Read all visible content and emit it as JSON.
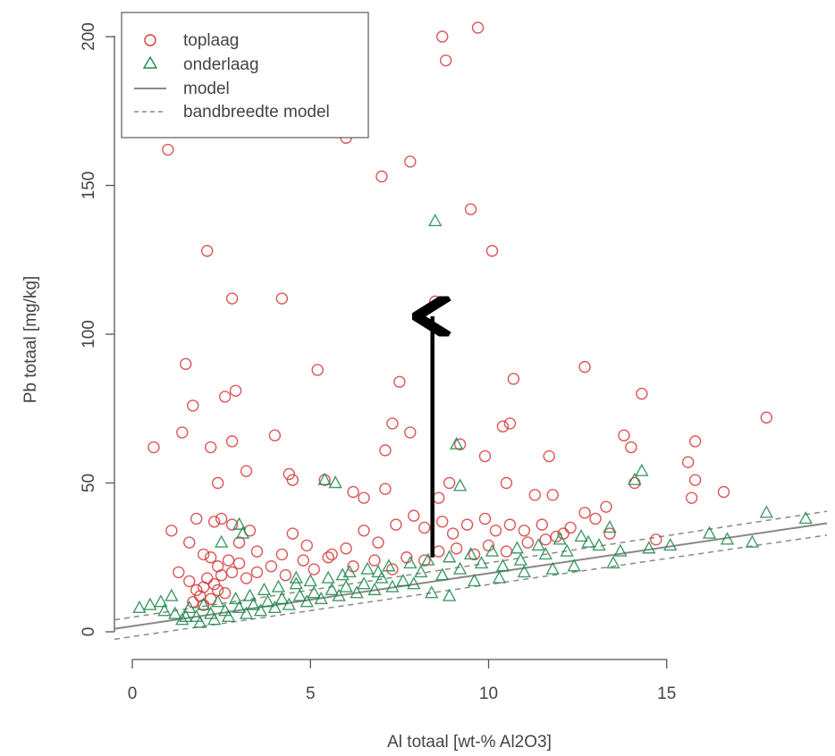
{
  "chart_data": {
    "type": "scatter",
    "xlabel": "Al totaal [wt-% Al2O3]",
    "ylabel": "Pb totaal [mg/kg]",
    "xlim": [
      -0.5,
      19.5
    ],
    "ylim": [
      -5,
      205
    ],
    "x_ticks": [
      0,
      5,
      10,
      15
    ],
    "y_ticks": [
      0,
      50,
      100,
      150,
      200
    ],
    "grid": false,
    "legend_position": "top-left",
    "legend": [
      {
        "label": "toplaag",
        "marker": "circle",
        "color": "#d63a3a"
      },
      {
        "label": "onderlaag",
        "marker": "triangle",
        "color": "#1f8a4c"
      },
      {
        "label": "model",
        "line": "solid",
        "color": "#888888"
      },
      {
        "label": "bandbreedte model",
        "line": "dashed",
        "color": "#888888"
      }
    ],
    "series": [
      {
        "name": "toplaag",
        "marker": "circle",
        "color": "#d63a3a",
        "points": [
          [
            9.7,
            203
          ],
          [
            8.7,
            200
          ],
          [
            8.8,
            192
          ],
          [
            1.0,
            162
          ],
          [
            6.0,
            166
          ],
          [
            7.0,
            153
          ],
          [
            7.8,
            158
          ],
          [
            9.5,
            142
          ],
          [
            10.1,
            128
          ],
          [
            2.1,
            128
          ],
          [
            2.8,
            112
          ],
          [
            4.2,
            112
          ],
          [
            8.5,
            111
          ],
          [
            1.5,
            90
          ],
          [
            5.2,
            88
          ],
          [
            12.7,
            89
          ],
          [
            1.7,
            76
          ],
          [
            2.6,
            79
          ],
          [
            2.9,
            81
          ],
          [
            7.5,
            84
          ],
          [
            10.7,
            85
          ],
          [
            14.3,
            80
          ],
          [
            1.4,
            67
          ],
          [
            4.0,
            66
          ],
          [
            7.3,
            70
          ],
          [
            7.8,
            67
          ],
          [
            10.6,
            70
          ],
          [
            10.4,
            69
          ],
          [
            13.8,
            66
          ],
          [
            14.0,
            62
          ],
          [
            15.8,
            64
          ],
          [
            17.8,
            72
          ],
          [
            0.6,
            62
          ],
          [
            2.2,
            62
          ],
          [
            2.8,
            64
          ],
          [
            7.1,
            61
          ],
          [
            9.2,
            63
          ],
          [
            9.9,
            59
          ],
          [
            11.7,
            59
          ],
          [
            15.6,
            57
          ],
          [
            3.2,
            54
          ],
          [
            4.4,
            53
          ],
          [
            4.5,
            51
          ],
          [
            2.4,
            50
          ],
          [
            5.4,
            51
          ],
          [
            6.2,
            47
          ],
          [
            6.5,
            45
          ],
          [
            7.1,
            48
          ],
          [
            8.6,
            45
          ],
          [
            8.9,
            50
          ],
          [
            10.5,
            50
          ],
          [
            11.3,
            46
          ],
          [
            11.8,
            46
          ],
          [
            13.3,
            42
          ],
          [
            14.1,
            50
          ],
          [
            15.8,
            51
          ],
          [
            16.6,
            47
          ],
          [
            15.7,
            45
          ],
          [
            1.1,
            34
          ],
          [
            1.8,
            38
          ],
          [
            2.3,
            37
          ],
          [
            2.5,
            38
          ],
          [
            2.8,
            36
          ],
          [
            3.3,
            34
          ],
          [
            1.6,
            30
          ],
          [
            2.0,
            26
          ],
          [
            2.2,
            25
          ],
          [
            2.4,
            22
          ],
          [
            2.7,
            24
          ],
          [
            3.0,
            30
          ],
          [
            3.5,
            27
          ],
          [
            4.2,
            26
          ],
          [
            4.5,
            33
          ],
          [
            4.9,
            29
          ],
          [
            5.6,
            26
          ],
          [
            6.0,
            28
          ],
          [
            6.5,
            34
          ],
          [
            6.9,
            30
          ],
          [
            7.4,
            36
          ],
          [
            7.9,
            39
          ],
          [
            8.2,
            35
          ],
          [
            8.7,
            37
          ],
          [
            9.0,
            33
          ],
          [
            9.4,
            36
          ],
          [
            9.9,
            38
          ],
          [
            10.2,
            34
          ],
          [
            10.6,
            36
          ],
          [
            11.0,
            34
          ],
          [
            11.5,
            36
          ],
          [
            11.9,
            32
          ],
          [
            12.3,
            35
          ],
          [
            12.7,
            40
          ],
          [
            13.0,
            38
          ],
          [
            13.4,
            33
          ],
          [
            14.7,
            31
          ],
          [
            1.3,
            20
          ],
          [
            1.6,
            17
          ],
          [
            1.8,
            14
          ],
          [
            2.0,
            15
          ],
          [
            2.1,
            18
          ],
          [
            2.3,
            16
          ],
          [
            2.5,
            19
          ],
          [
            2.6,
            13
          ],
          [
            2.8,
            20
          ],
          [
            3.0,
            23
          ],
          [
            3.2,
            18
          ],
          [
            3.5,
            20
          ],
          [
            3.9,
            22
          ],
          [
            4.3,
            19
          ],
          [
            4.8,
            24
          ],
          [
            5.1,
            21
          ],
          [
            5.5,
            25
          ],
          [
            6.2,
            22
          ],
          [
            6.8,
            24
          ],
          [
            7.3,
            21
          ],
          [
            7.7,
            25
          ],
          [
            8.2,
            24
          ],
          [
            8.6,
            27
          ],
          [
            9.1,
            28
          ],
          [
            9.6,
            26
          ],
          [
            10.0,
            29
          ],
          [
            10.5,
            27
          ],
          [
            11.1,
            30
          ],
          [
            11.6,
            31
          ],
          [
            12.1,
            33
          ],
          [
            1.9,
            12
          ],
          [
            2.2,
            11
          ],
          [
            2.4,
            14
          ],
          [
            1.7,
            10
          ],
          [
            2.0,
            9
          ]
        ]
      },
      {
        "name": "onderlaag",
        "marker": "triangle",
        "color": "#1f8a4c",
        "points": [
          [
            8.5,
            138
          ],
          [
            9.1,
            63
          ],
          [
            9.2,
            49
          ],
          [
            5.4,
            51
          ],
          [
            5.7,
            50
          ],
          [
            14.3,
            54
          ],
          [
            14.1,
            51
          ],
          [
            17.8,
            40
          ],
          [
            18.9,
            38
          ],
          [
            16.2,
            33
          ],
          [
            16.7,
            31
          ],
          [
            17.4,
            30
          ],
          [
            15.1,
            29
          ],
          [
            13.4,
            35
          ],
          [
            12.8,
            30
          ],
          [
            12.2,
            27
          ],
          [
            11.6,
            26
          ],
          [
            10.9,
            24
          ],
          [
            10.4,
            22
          ],
          [
            9.8,
            23
          ],
          [
            9.2,
            21
          ],
          [
            8.7,
            19
          ],
          [
            8.1,
            20
          ],
          [
            7.6,
            17
          ],
          [
            7.0,
            18
          ],
          [
            6.5,
            16
          ],
          [
            6.0,
            15
          ],
          [
            5.6,
            14
          ],
          [
            5.1,
            13
          ],
          [
            4.7,
            12
          ],
          [
            4.2,
            11
          ],
          [
            3.8,
            10
          ],
          [
            3.4,
            9
          ],
          [
            3.0,
            8
          ],
          [
            2.6,
            7
          ],
          [
            2.2,
            6
          ],
          [
            1.8,
            5
          ],
          [
            1.5,
            5
          ],
          [
            1.2,
            6
          ],
          [
            0.9,
            7
          ],
          [
            0.5,
            9
          ],
          [
            0.2,
            8
          ],
          [
            1.6,
            8
          ],
          [
            2.0,
            9
          ],
          [
            2.4,
            10
          ],
          [
            2.9,
            11
          ],
          [
            3.3,
            12
          ],
          [
            3.7,
            14
          ],
          [
            4.1,
            15
          ],
          [
            4.6,
            16
          ],
          [
            5.0,
            17
          ],
          [
            5.5,
            18
          ],
          [
            6.1,
            20
          ],
          [
            6.6,
            21
          ],
          [
            7.2,
            22
          ],
          [
            7.8,
            23
          ],
          [
            8.3,
            24
          ],
          [
            8.9,
            25
          ],
          [
            9.5,
            26
          ],
          [
            10.1,
            27
          ],
          [
            10.8,
            28
          ],
          [
            11.4,
            29
          ],
          [
            12.0,
            31
          ],
          [
            12.6,
            32
          ],
          [
            13.1,
            29
          ],
          [
            13.7,
            27
          ],
          [
            14.5,
            28
          ],
          [
            8.4,
            13
          ],
          [
            8.9,
            12
          ],
          [
            9.6,
            17
          ],
          [
            10.3,
            18
          ],
          [
            11.0,
            20
          ],
          [
            11.8,
            21
          ],
          [
            12.4,
            22
          ],
          [
            13.5,
            23
          ],
          [
            2.5,
            30
          ],
          [
            3.1,
            33
          ],
          [
            1.4,
            4
          ],
          [
            1.9,
            3
          ],
          [
            2.3,
            4
          ],
          [
            2.7,
            5
          ],
          [
            3.2,
            6
          ],
          [
            3.6,
            7
          ],
          [
            4.0,
            8
          ],
          [
            4.4,
            9
          ],
          [
            4.9,
            10
          ],
          [
            5.3,
            11
          ],
          [
            5.8,
            12
          ],
          [
            6.3,
            13
          ],
          [
            6.8,
            14
          ],
          [
            7.3,
            15
          ],
          [
            7.9,
            16
          ],
          [
            3.0,
            36
          ],
          [
            4.6,
            18
          ],
          [
            5.9,
            19
          ],
          [
            6.9,
            20
          ],
          [
            1.1,
            12
          ],
          [
            0.8,
            10
          ]
        ]
      }
    ],
    "model_line": [
      [
        -0.5,
        1.0
      ],
      [
        19.5,
        36.5
      ]
    ],
    "band_upper": [
      [
        -0.5,
        4.0
      ],
      [
        19.5,
        40.5
      ]
    ],
    "band_lower": [
      [
        -0.5,
        -2.5
      ],
      [
        19.5,
        32.5
      ]
    ],
    "arrow": {
      "from": [
        8.5,
        25
      ],
      "to": [
        8.5,
        106
      ],
      "color": "#000000"
    }
  }
}
